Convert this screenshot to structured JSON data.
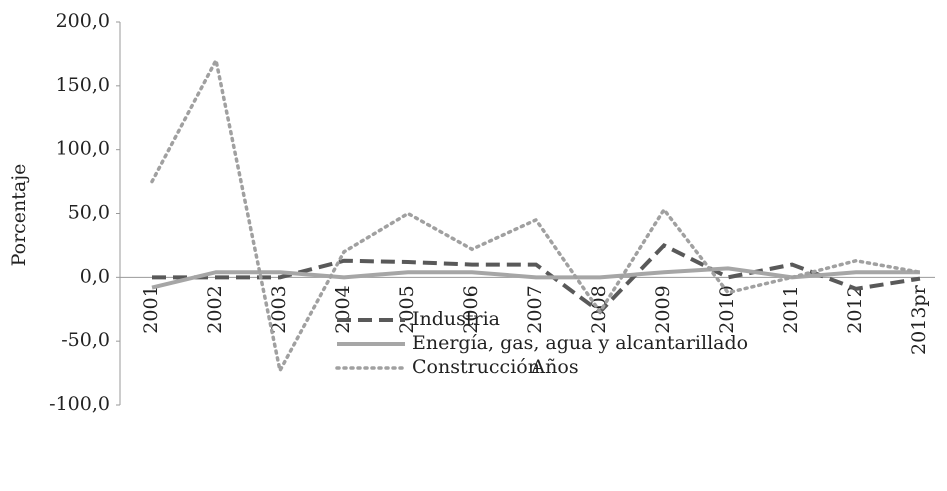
{
  "chart_data": {
    "type": "line",
    "x_label": "Años",
    "y_label": "Porcentaje",
    "categories": [
      "2001",
      "2002",
      "2003",
      "2004",
      "2005",
      "2006",
      "2007",
      "2008",
      "2009",
      "2010",
      "2011",
      "2012",
      "2013pr"
    ],
    "series": [
      {
        "name": "Industria",
        "color": "#595959",
        "style": "dashed",
        "values": [
          0,
          0,
          0,
          13,
          12,
          10,
          10,
          -27,
          25,
          0,
          10,
          -9,
          -1
        ]
      },
      {
        "name": "Energía, gas, agua y alcantarillado",
        "color": "#a6a6a6",
        "style": "solid",
        "values": [
          -8,
          4,
          4,
          0,
          4,
          4,
          0,
          0,
          4,
          7,
          0,
          4,
          4
        ]
      },
      {
        "name": "Construcción",
        "color": "#a0a0a0",
        "style": "dotted",
        "values": [
          75,
          170,
          -73,
          20,
          50,
          22,
          45,
          -27,
          53,
          -12,
          0,
          13,
          4
        ]
      }
    ],
    "ylim": [
      -100,
      200
    ],
    "yticks": [
      {
        "value": -100,
        "label": "-100,0"
      },
      {
        "value": -50,
        "label": "-50,0"
      },
      {
        "value": 0,
        "label": "0,0"
      },
      {
        "value": 50,
        "label": "50,0"
      },
      {
        "value": 100,
        "label": "100,0"
      },
      {
        "value": 150,
        "label": "150,0"
      },
      {
        "value": 200,
        "label": "200,0"
      }
    ],
    "legend": "bottom"
  }
}
